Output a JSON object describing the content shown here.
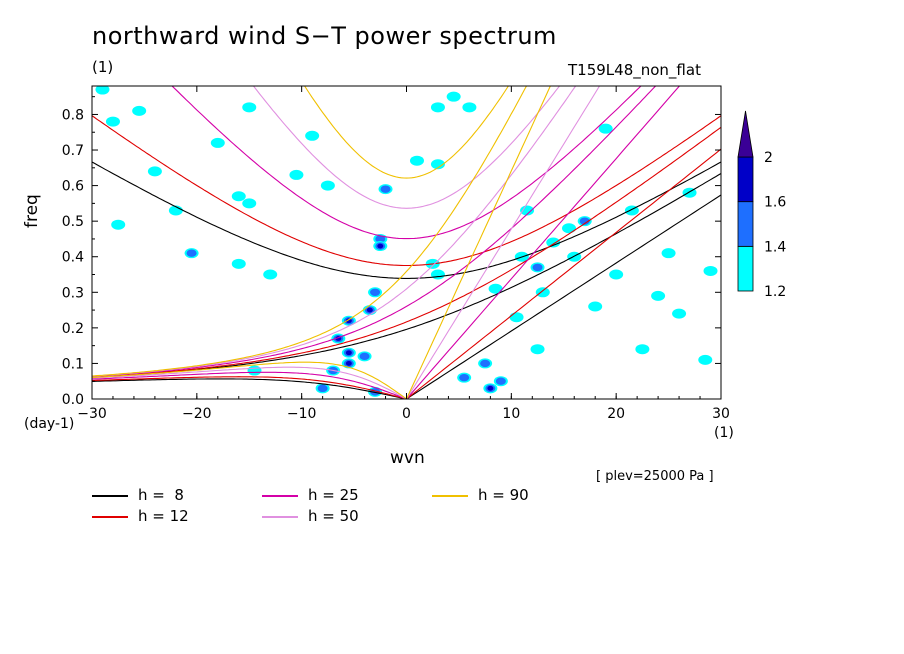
{
  "header": {
    "title": "northward wind S−T power spectrum",
    "subtitle_left": "(1)",
    "subtitle_right": "T159L48_non_flat",
    "plev": "[ plev=25000 Pa ]"
  },
  "chart_data": {
    "type": "heatmap",
    "xlabel": "wvn",
    "ylabel": "freq",
    "x_unit": "(1)",
    "y_unit": "(day-1)",
    "xlim": [
      -30,
      30
    ],
    "ylim": [
      0,
      0.88
    ],
    "x_ticks": [
      -30,
      -20,
      -10,
      0,
      10,
      20,
      30
    ],
    "x_tick_labels": [
      "−30",
      "−20",
      "−10",
      "0",
      "10",
      "20",
      "30"
    ],
    "y_ticks": [
      0.0,
      0.1,
      0.2,
      0.3,
      0.4,
      0.5,
      0.6,
      0.7,
      0.8
    ],
    "y_tick_labels": [
      "0.0",
      "0.1",
      "0.2",
      "0.3",
      "0.4",
      "0.5",
      "0.6",
      "0.7",
      "0.8"
    ],
    "colorbar": {
      "levels": [
        1.2,
        1.4,
        1.6,
        2
      ],
      "level_labels": [
        "1.2",
        "1.4",
        "1.6",
        "2"
      ],
      "colors": [
        "#00ffff",
        "#1e6fff",
        "#0000c8",
        "#3a0096"
      ]
    },
    "dispersion_curves": [
      {
        "label": "h =  8",
        "h": 8,
        "color": "#000000"
      },
      {
        "label": "h = 12",
        "h": 12,
        "color": "#e00000"
      },
      {
        "label": "h = 25",
        "h": 25,
        "color": "#d400a8"
      },
      {
        "label": "h = 50",
        "h": 50,
        "color": "#e090e0"
      },
      {
        "label": "h = 90",
        "h": 90,
        "color": "#f0c000"
      }
    ],
    "spectral_peaks": [
      {
        "x": -3.0,
        "y": 0.3,
        "level": 2
      },
      {
        "x": -3.5,
        "y": 0.25,
        "level": 3
      },
      {
        "x": -5.5,
        "y": 0.22,
        "level": 3
      },
      {
        "x": -6.5,
        "y": 0.17,
        "level": 3
      },
      {
        "x": -5.5,
        "y": 0.13,
        "level": 3
      },
      {
        "x": -5.5,
        "y": 0.1,
        "level": 3
      },
      {
        "x": -7.0,
        "y": 0.08,
        "level": 2
      },
      {
        "x": -4.0,
        "y": 0.12,
        "level": 2
      },
      {
        "x": -8.0,
        "y": 0.03,
        "level": 2
      },
      {
        "x": -3.0,
        "y": 0.02,
        "level": 2
      },
      {
        "x": -2.5,
        "y": 0.45,
        "level": 2
      },
      {
        "x": -2.5,
        "y": 0.43,
        "level": 3
      },
      {
        "x": -2.0,
        "y": 0.59,
        "level": 2
      },
      {
        "x": 7.5,
        "y": 0.1,
        "level": 2
      },
      {
        "x": 9.0,
        "y": 0.05,
        "level": 2
      },
      {
        "x": 8.0,
        "y": 0.03,
        "level": 3
      },
      {
        "x": 5.5,
        "y": 0.06,
        "level": 2
      },
      {
        "x": 10.5,
        "y": 0.23,
        "level": 1
      },
      {
        "x": 12.5,
        "y": 0.37,
        "level": 2
      },
      {
        "x": 11.0,
        "y": 0.4,
        "level": 1
      },
      {
        "x": 14.0,
        "y": 0.44,
        "level": 1
      },
      {
        "x": 17.0,
        "y": 0.5,
        "level": 2
      },
      {
        "x": 15.5,
        "y": 0.48,
        "level": 1
      },
      {
        "x": 13.0,
        "y": 0.3,
        "level": 1
      },
      {
        "x": 3.0,
        "y": 0.35,
        "level": 1
      },
      {
        "x": 3.0,
        "y": 0.66,
        "level": 1
      },
      {
        "x": 3.0,
        "y": 0.82,
        "level": 1
      },
      {
        "x": 6.0,
        "y": 0.82,
        "level": 1
      },
      {
        "x": -20.5,
        "y": 0.41,
        "level": 2
      },
      {
        "x": -28.0,
        "y": 0.78,
        "level": 1
      },
      {
        "x": -25.5,
        "y": 0.81,
        "level": 1
      },
      {
        "x": -22.0,
        "y": 0.53,
        "level": 1
      },
      {
        "x": -15.0,
        "y": 0.55,
        "level": 1
      },
      {
        "x": -16.0,
        "y": 0.57,
        "level": 1
      },
      {
        "x": -18.0,
        "y": 0.72,
        "level": 1
      },
      {
        "x": -24.0,
        "y": 0.64,
        "level": 1
      },
      {
        "x": -27.5,
        "y": 0.49,
        "level": 1
      },
      {
        "x": -29.0,
        "y": 0.87,
        "level": 1
      },
      {
        "x": -10.5,
        "y": 0.63,
        "level": 1
      },
      {
        "x": -7.5,
        "y": 0.6,
        "level": 1
      },
      {
        "x": -15.0,
        "y": 0.82,
        "level": 1
      },
      {
        "x": -9.0,
        "y": 0.74,
        "level": 1
      },
      {
        "x": 1.0,
        "y": 0.67,
        "level": 1
      },
      {
        "x": -14.5,
        "y": 0.08,
        "level": 1
      },
      {
        "x": -13.0,
        "y": 0.35,
        "level": 1
      },
      {
        "x": -16.0,
        "y": 0.38,
        "level": 1
      },
      {
        "x": 8.5,
        "y": 0.31,
        "level": 1
      },
      {
        "x": 4.5,
        "y": 0.85,
        "level": 1
      },
      {
        "x": 2.5,
        "y": 0.38,
        "level": 1
      },
      {
        "x": 20.0,
        "y": 0.35,
        "level": 1
      },
      {
        "x": 24.0,
        "y": 0.29,
        "level": 1
      },
      {
        "x": 22.5,
        "y": 0.14,
        "level": 1
      },
      {
        "x": 26.0,
        "y": 0.24,
        "level": 1
      },
      {
        "x": 21.5,
        "y": 0.53,
        "level": 1
      },
      {
        "x": 27.0,
        "y": 0.58,
        "level": 1
      },
      {
        "x": 19.0,
        "y": 0.76,
        "level": 1
      },
      {
        "x": 16.0,
        "y": 0.4,
        "level": 1
      },
      {
        "x": 18.0,
        "y": 0.26,
        "level": 1
      },
      {
        "x": 12.5,
        "y": 0.14,
        "level": 1
      },
      {
        "x": 29.0,
        "y": 0.36,
        "level": 1
      },
      {
        "x": 11.5,
        "y": 0.53,
        "level": 1
      },
      {
        "x": 25.0,
        "y": 0.41,
        "level": 1
      },
      {
        "x": 28.5,
        "y": 0.11,
        "level": 1
      }
    ]
  }
}
